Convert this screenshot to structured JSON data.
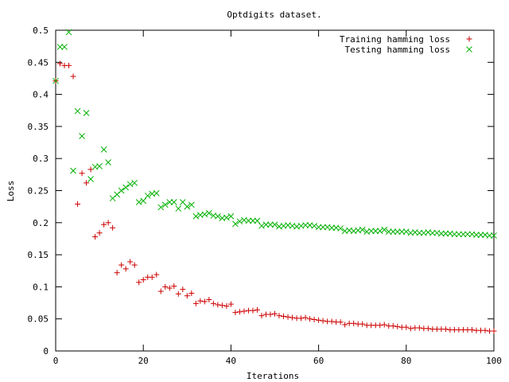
{
  "chart_data": {
    "type": "scatter",
    "title": "Optdigits dataset.",
    "xlabel": "Iterations",
    "ylabel": "Loss",
    "xlim": [
      0,
      100
    ],
    "ylim": [
      0,
      0.5
    ],
    "xticks": [
      0,
      20,
      40,
      60,
      80,
      100
    ],
    "yticks": [
      0,
      0.05,
      0.1,
      0.15,
      0.2,
      0.25,
      0.3,
      0.35,
      0.4,
      0.45,
      0.5
    ],
    "legend_position": "top-right",
    "grid": false,
    "series": [
      {
        "name": "Training hamming loss",
        "marker": "plus",
        "color": "#cc0000",
        "x": [
          0,
          1,
          2,
          3,
          4,
          5,
          6,
          7,
          8,
          9,
          10,
          11,
          12,
          13,
          14,
          15,
          16,
          17,
          18,
          19,
          20,
          21,
          22,
          23,
          24,
          25,
          26,
          27,
          28,
          29,
          30,
          31,
          32,
          33,
          34,
          35,
          36,
          37,
          38,
          39,
          40,
          41,
          42,
          43,
          44,
          45,
          46,
          47,
          48,
          49,
          50,
          51,
          52,
          53,
          54,
          55,
          56,
          57,
          58,
          59,
          60,
          61,
          62,
          63,
          64,
          65,
          66,
          67,
          68,
          69,
          70,
          71,
          72,
          73,
          74,
          75,
          76,
          77,
          78,
          79,
          80,
          81,
          82,
          83,
          84,
          85,
          86,
          87,
          88,
          89,
          90,
          91,
          92,
          93,
          94,
          95,
          96,
          97,
          98,
          99,
          100
        ],
        "y": [
          0.421,
          0.448,
          0.445,
          0.445,
          0.428,
          0.229,
          0.277,
          0.262,
          0.283,
          0.178,
          0.184,
          0.197,
          0.2,
          0.192,
          0.122,
          0.134,
          0.128,
          0.139,
          0.134,
          0.107,
          0.111,
          0.115,
          0.115,
          0.119,
          0.093,
          0.1,
          0.098,
          0.101,
          0.089,
          0.096,
          0.086,
          0.09,
          0.074,
          0.078,
          0.077,
          0.08,
          0.074,
          0.072,
          0.071,
          0.07,
          0.073,
          0.06,
          0.061,
          0.062,
          0.063,
          0.063,
          0.064,
          0.055,
          0.057,
          0.057,
          0.058,
          0.055,
          0.054,
          0.053,
          0.052,
          0.051,
          0.051,
          0.052,
          0.05,
          0.049,
          0.048,
          0.047,
          0.046,
          0.046,
          0.045,
          0.045,
          0.041,
          0.043,
          0.043,
          0.042,
          0.042,
          0.04,
          0.04,
          0.04,
          0.04,
          0.041,
          0.039,
          0.039,
          0.038,
          0.037,
          0.037,
          0.035,
          0.036,
          0.036,
          0.035,
          0.035,
          0.034,
          0.034,
          0.034,
          0.034,
          0.033,
          0.033,
          0.033,
          0.033,
          0.033,
          0.033,
          0.032,
          0.032,
          0.032,
          0.031,
          0.031
        ]
      },
      {
        "name": "Testing hamming loss",
        "marker": "cross",
        "color": "#00b000",
        "x": [
          0,
          1,
          2,
          3,
          4,
          5,
          6,
          7,
          8,
          9,
          10,
          11,
          12,
          13,
          14,
          15,
          16,
          17,
          18,
          19,
          20,
          21,
          22,
          23,
          24,
          25,
          26,
          27,
          28,
          29,
          30,
          31,
          32,
          33,
          34,
          35,
          36,
          37,
          38,
          39,
          40,
          41,
          42,
          43,
          44,
          45,
          46,
          47,
          48,
          49,
          50,
          51,
          52,
          53,
          54,
          55,
          56,
          57,
          58,
          59,
          60,
          61,
          62,
          63,
          64,
          65,
          66,
          67,
          68,
          69,
          70,
          71,
          72,
          73,
          74,
          75,
          76,
          77,
          78,
          79,
          80,
          81,
          82,
          83,
          84,
          85,
          86,
          87,
          88,
          89,
          90,
          91,
          92,
          93,
          94,
          95,
          96,
          97,
          98,
          99,
          100
        ],
        "y": [
          0.421,
          0.474,
          0.474,
          0.497,
          0.281,
          0.374,
          0.335,
          0.371,
          0.268,
          0.287,
          0.288,
          0.314,
          0.294,
          0.238,
          0.244,
          0.25,
          0.255,
          0.26,
          0.262,
          0.232,
          0.234,
          0.242,
          0.245,
          0.246,
          0.224,
          0.228,
          0.232,
          0.232,
          0.222,
          0.232,
          0.225,
          0.228,
          0.21,
          0.212,
          0.213,
          0.215,
          0.211,
          0.21,
          0.207,
          0.208,
          0.21,
          0.198,
          0.202,
          0.204,
          0.203,
          0.203,
          0.203,
          0.195,
          0.197,
          0.197,
          0.197,
          0.194,
          0.195,
          0.196,
          0.195,
          0.194,
          0.195,
          0.196,
          0.196,
          0.195,
          0.193,
          0.193,
          0.193,
          0.192,
          0.192,
          0.191,
          0.187,
          0.188,
          0.187,
          0.188,
          0.189,
          0.186,
          0.187,
          0.187,
          0.187,
          0.189,
          0.186,
          0.186,
          0.186,
          0.186,
          0.186,
          0.184,
          0.185,
          0.184,
          0.184,
          0.185,
          0.184,
          0.184,
          0.183,
          0.183,
          0.183,
          0.182,
          0.182,
          0.182,
          0.182,
          0.182,
          0.181,
          0.181,
          0.181,
          0.18,
          0.18
        ]
      }
    ]
  }
}
